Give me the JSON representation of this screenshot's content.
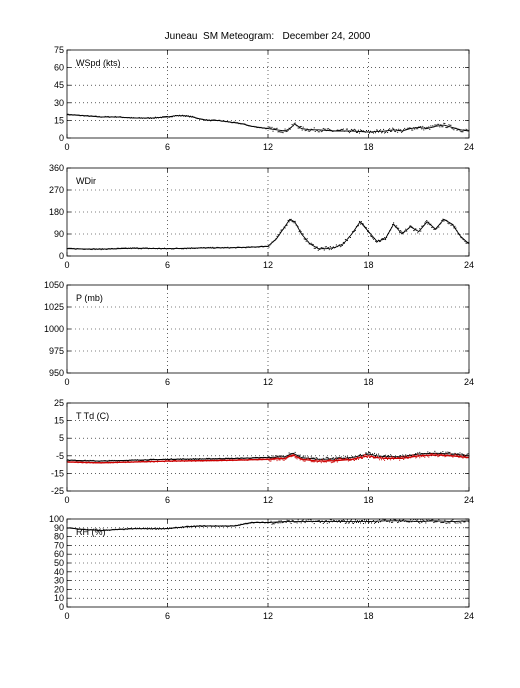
{
  "figure": {
    "title": "Juneau  SM Meteogram:   December 24, 2000"
  },
  "chart_data": [
    {
      "type": "line",
      "panel_label": "WSpd (kts)",
      "xlim": [
        0,
        24
      ],
      "xticks": [
        0,
        6,
        12,
        18,
        24
      ],
      "ylim": [
        0,
        75
      ],
      "yticks": [
        0,
        15,
        30,
        45,
        60,
        75
      ],
      "grid": true,
      "series": [
        {
          "color": "#000000",
          "x": [
            0,
            1,
            2,
            3,
            4,
            5,
            6,
            6.5,
            7,
            7.5,
            8,
            8.5,
            9,
            9.5,
            10,
            10.5,
            11,
            11.5,
            12,
            12.5,
            13,
            13.3,
            13.6,
            14,
            14.5,
            15,
            16,
            17,
            18,
            19,
            19.5,
            20,
            20.5,
            21,
            21.5,
            22,
            22.5,
            23,
            23.5,
            24
          ],
          "y": [
            20,
            19,
            18,
            18,
            17,
            17,
            18,
            19,
            19,
            18,
            16,
            15,
            15,
            14,
            13,
            12,
            10,
            9,
            8,
            7,
            6,
            8,
            12,
            8,
            7,
            7,
            6,
            6,
            5,
            6,
            7,
            6,
            8,
            9,
            8,
            10,
            11,
            9,
            7,
            6
          ]
        }
      ]
    },
    {
      "type": "line",
      "panel_label": "WDir",
      "xlim": [
        0,
        24
      ],
      "xticks": [
        0,
        6,
        12,
        18,
        24
      ],
      "ylim": [
        0,
        360
      ],
      "yticks": [
        0,
        90,
        180,
        270,
        360
      ],
      "grid": true,
      "series": [
        {
          "color": "#000000",
          "x": [
            0,
            2,
            4,
            6,
            8,
            10,
            11,
            12,
            12.5,
            13,
            13.3,
            13.6,
            14,
            14.5,
            15,
            15.5,
            16,
            16.5,
            17,
            17.5,
            18,
            18.5,
            19,
            19.5,
            20,
            20.5,
            21,
            21.5,
            22,
            22.5,
            23,
            23.5,
            24
          ],
          "y": [
            30,
            28,
            32,
            30,
            33,
            34,
            36,
            40,
            70,
            120,
            150,
            140,
            90,
            50,
            30,
            30,
            35,
            50,
            90,
            140,
            100,
            60,
            70,
            130,
            90,
            120,
            100,
            140,
            110,
            150,
            130,
            80,
            50
          ]
        }
      ]
    },
    {
      "type": "line",
      "panel_label": "P (mb)",
      "xlim": [
        0,
        24
      ],
      "xticks": [
        0,
        6,
        12,
        18,
        24
      ],
      "ylim": [
        950,
        1050
      ],
      "yticks": [
        950,
        975,
        1000,
        1025,
        1050
      ],
      "grid": true,
      "series": []
    },
    {
      "type": "line",
      "panel_label": "T Td (C)",
      "xlim": [
        0,
        24
      ],
      "xticks": [
        0,
        6,
        12,
        18,
        24
      ],
      "ylim": [
        -25,
        25
      ],
      "yticks": [
        -25,
        -15,
        -5,
        5,
        15,
        25
      ],
      "grid": true,
      "series": [
        {
          "color": "#000000",
          "x": [
            0,
            2,
            4,
            6,
            8,
            10,
            12,
            13,
            13.5,
            14,
            15,
            16,
            17,
            18,
            18.5,
            19,
            20,
            21,
            22,
            23,
            24
          ],
          "y": [
            -7.5,
            -8,
            -7.5,
            -7,
            -6.8,
            -6.5,
            -6,
            -5.5,
            -3.5,
            -6,
            -7,
            -6.8,
            -6,
            -4,
            -5,
            -5.5,
            -5.5,
            -4,
            -3.5,
            -4,
            -5
          ]
        },
        {
          "color": "#cc0000",
          "x": [
            0,
            2,
            4,
            6,
            8,
            10,
            12,
            13,
            13.5,
            14,
            15,
            16,
            17,
            18,
            18.5,
            19,
            20,
            21,
            22,
            23,
            24
          ],
          "y": [
            -8.5,
            -9,
            -8.5,
            -8,
            -7.8,
            -7.5,
            -7,
            -6.5,
            -4.5,
            -7,
            -8,
            -7.8,
            -7,
            -5,
            -6,
            -6.5,
            -6.5,
            -5,
            -4.5,
            -5,
            -6
          ]
        }
      ]
    },
    {
      "type": "line",
      "panel_label": "RH (%)",
      "xlim": [
        0,
        24
      ],
      "xticks": [
        0,
        6,
        12,
        18,
        24
      ],
      "ylim": [
        0,
        100
      ],
      "yticks": [
        0,
        10,
        20,
        30,
        40,
        50,
        60,
        70,
        80,
        90,
        100
      ],
      "grid": true,
      "series": [
        {
          "color": "#000000",
          "x": [
            0,
            1,
            2,
            3,
            4,
            5,
            6,
            7,
            8,
            9,
            10,
            10.5,
            11,
            12,
            13,
            14,
            15,
            16,
            17,
            18,
            19,
            20,
            21,
            22,
            23,
            24
          ],
          "y": [
            90,
            88,
            87,
            88,
            89,
            89,
            89,
            91,
            92,
            92,
            92,
            94,
            96,
            96,
            97,
            97,
            97,
            97,
            97,
            97,
            98,
            98,
            97,
            98,
            97,
            98
          ]
        }
      ]
    }
  ]
}
